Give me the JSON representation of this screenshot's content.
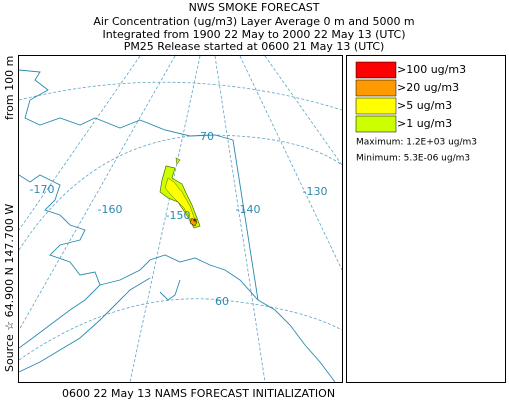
{
  "header": {
    "lines": [
      "NWS SMOKE FORECAST",
      "Air Concentration (ug/m3) Layer Average    0 m and  5000 m",
      "Integrated from 1900 22 May to 2000 22 May 13 (UTC)",
      "PM25 Release started at 0600 21 May 13 (UTC)"
    ]
  },
  "side_label": {
    "source": "Source ☆ 64.900 N 147.700 W",
    "height": "from  100 m"
  },
  "map": {
    "grid_labels": [
      "-170",
      "-160",
      "-150",
      "-140",
      "-130",
      "70",
      "60"
    ]
  },
  "legend": {
    "items": [
      {
        "label": ">100 ug/m3",
        "color": "#ff0000"
      },
      {
        "label": ">20 ug/m3",
        "color": "#ff9900"
      },
      {
        "label": ">5 ug/m3",
        "color": "#ffff00"
      },
      {
        "label": ">1 ug/m3",
        "color": "#ccff00"
      }
    ],
    "maximum": "Maximum: 1.2E+03 ug/m3",
    "minimum": "Minimum: 5.3E-06 ug/m3"
  },
  "footer": "0600 22 May 13 NAMS FORECAST INITIALIZATION"
}
